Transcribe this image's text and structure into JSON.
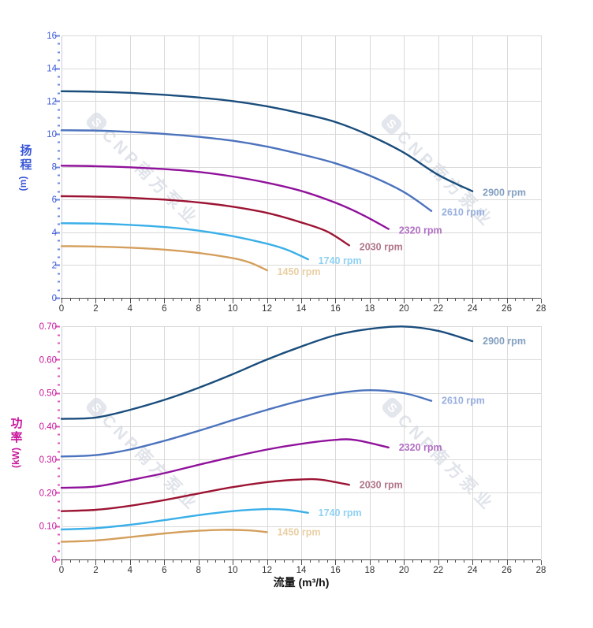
{
  "watermark": {
    "brand": "CNP南方泵业",
    "logo_letter": "S"
  },
  "chart_data": [
    {
      "type": "line",
      "title": "",
      "xlabel": "",
      "ylabel": "扬程",
      "ylabel_unit": "(m)",
      "xlim": [
        0,
        28
      ],
      "ylim": [
        0,
        16
      ],
      "x_tick_step": 2,
      "y_tick_step": 2,
      "x_minor_step": 0.5,
      "y_minor_step": 0.5,
      "grid": true,
      "legend_position": "curve-end-labels",
      "x_tick_labels": [
        "0",
        "2",
        "4",
        "6",
        "8",
        "10",
        "12",
        "14",
        "16",
        "18",
        "20",
        "22",
        "24",
        "26",
        "28"
      ],
      "y_tick_labels": [
        "0",
        "2",
        "4",
        "6",
        "8",
        "10",
        "12",
        "14",
        "16"
      ],
      "axis_label_color": "#3a57d7",
      "tick_color": "#6e86de",
      "x_tick_label_color": "#333333",
      "grid_color": "#d9d9d9",
      "x_axis_color": "#4d4d4d",
      "series": [
        {
          "name": "2900 rpm",
          "color": "#1a4d7c",
          "label_color": "#829fc0",
          "points": [
            [
              0,
              12.6
            ],
            [
              2,
              12.57
            ],
            [
              4,
              12.5
            ],
            [
              6,
              12.38
            ],
            [
              8,
              12.22
            ],
            [
              10,
              12.0
            ],
            [
              12,
              11.68
            ],
            [
              14,
              11.25
            ],
            [
              16,
              10.72
            ],
            [
              18,
              9.9
            ],
            [
              20,
              8.85
            ],
            [
              22,
              7.5
            ],
            [
              24,
              6.5
            ]
          ]
        },
        {
          "name": "2610 rpm",
          "color": "#4c73bd",
          "label_color": "#98afdf",
          "points": [
            [
              0,
              10.22
            ],
            [
              2,
              10.2
            ],
            [
              4,
              10.12
            ],
            [
              6,
              10.0
            ],
            [
              8,
              9.82
            ],
            [
              10,
              9.58
            ],
            [
              12,
              9.22
            ],
            [
              14,
              8.75
            ],
            [
              16,
              8.2
            ],
            [
              18,
              7.45
            ],
            [
              20,
              6.45
            ],
            [
              21.6,
              5.3
            ]
          ]
        },
        {
          "name": "2320 rpm",
          "color": "#90119b",
          "label_color": "#b06fc2",
          "points": [
            [
              0,
              8.06
            ],
            [
              2,
              8.03
            ],
            [
              4,
              7.96
            ],
            [
              6,
              7.85
            ],
            [
              8,
              7.68
            ],
            [
              10,
              7.4
            ],
            [
              12,
              7.02
            ],
            [
              14,
              6.52
            ],
            [
              16,
              5.8
            ],
            [
              17.6,
              5.05
            ],
            [
              19.1,
              4.2
            ]
          ]
        },
        {
          "name": "2030 rpm",
          "color": "#9c1433",
          "label_color": "#b1758a",
          "points": [
            [
              0,
              6.2
            ],
            [
              2,
              6.17
            ],
            [
              4,
              6.1
            ],
            [
              6,
              5.99
            ],
            [
              8,
              5.82
            ],
            [
              10,
              5.56
            ],
            [
              12,
              5.18
            ],
            [
              14,
              4.6
            ],
            [
              15.5,
              4.05
            ],
            [
              16.8,
              3.2
            ]
          ]
        },
        {
          "name": "1740 rpm",
          "color": "#3aafe8",
          "label_color": "#8ed1f2",
          "points": [
            [
              0,
              4.55
            ],
            [
              2,
              4.53
            ],
            [
              4,
              4.45
            ],
            [
              6,
              4.32
            ],
            [
              8,
              4.1
            ],
            [
              10,
              3.76
            ],
            [
              12,
              3.3
            ],
            [
              13.2,
              2.92
            ],
            [
              14.4,
              2.35
            ]
          ]
        },
        {
          "name": "1450 rpm",
          "color": "#d49f5c",
          "label_color": "#e9cfa3",
          "points": [
            [
              0,
              3.15
            ],
            [
              2,
              3.13
            ],
            [
              4,
              3.06
            ],
            [
              6,
              2.94
            ],
            [
              8,
              2.74
            ],
            [
              10,
              2.42
            ],
            [
              11,
              2.15
            ],
            [
              12,
              1.68
            ]
          ]
        }
      ]
    },
    {
      "type": "line",
      "title": "",
      "xlabel": "流量 (m³/h)",
      "ylabel": "功率",
      "ylabel_unit": "(kW)",
      "xlim": [
        0,
        28
      ],
      "ylim": [
        0,
        0.7
      ],
      "x_tick_step": 2,
      "y_tick_step": 0.1,
      "x_minor_step": 0.5,
      "y_minor_step": 0.025,
      "grid": true,
      "legend_position": "curve-end-labels",
      "x_tick_labels": [
        "0",
        "2",
        "4",
        "6",
        "8",
        "10",
        "12",
        "14",
        "16",
        "18",
        "20",
        "22",
        "24",
        "26",
        "28"
      ],
      "y_tick_labels": [
        "0",
        "0.10",
        "0.20",
        "0.30",
        "0.40",
        "0.50",
        "0.60",
        "0.70"
      ],
      "axis_label_color": "#c9159c",
      "tick_color": "#dd55b8",
      "x_tick_label_color": "#333333",
      "grid_color": "#d9d9d9",
      "x_axis_color": "#4d4d4d",
      "series": [
        {
          "name": "2900 rpm",
          "color": "#1a4d7c",
          "label_color": "#829fc0",
          "points": [
            [
              0,
              0.422
            ],
            [
              2,
              0.426
            ],
            [
              4,
              0.449
            ],
            [
              6,
              0.479
            ],
            [
              8,
              0.515
            ],
            [
              10,
              0.556
            ],
            [
              12,
              0.6
            ],
            [
              14,
              0.639
            ],
            [
              16,
              0.673
            ],
            [
              18,
              0.692
            ],
            [
              20,
              0.699
            ],
            [
              22,
              0.686
            ],
            [
              24,
              0.655
            ]
          ]
        },
        {
          "name": "2610 rpm",
          "color": "#4c73bd",
          "label_color": "#98afdf",
          "points": [
            [
              0,
              0.309
            ],
            [
              2,
              0.313
            ],
            [
              4,
              0.33
            ],
            [
              6,
              0.356
            ],
            [
              8,
              0.386
            ],
            [
              10,
              0.418
            ],
            [
              12,
              0.449
            ],
            [
              14,
              0.477
            ],
            [
              16,
              0.498
            ],
            [
              18,
              0.508
            ],
            [
              20,
              0.499
            ],
            [
              21.6,
              0.476
            ]
          ]
        },
        {
          "name": "2320 rpm",
          "color": "#90119b",
          "label_color": "#b06fc2",
          "points": [
            [
              0,
              0.215
            ],
            [
              2,
              0.219
            ],
            [
              4,
              0.238
            ],
            [
              6,
              0.259
            ],
            [
              8,
              0.284
            ],
            [
              10,
              0.308
            ],
            [
              12,
              0.33
            ],
            [
              14,
              0.347
            ],
            [
              16,
              0.359
            ],
            [
              17.2,
              0.358
            ],
            [
              19.1,
              0.336
            ]
          ]
        },
        {
          "name": "2030 rpm",
          "color": "#9c1433",
          "label_color": "#b1758a",
          "points": [
            [
              0,
              0.145
            ],
            [
              2,
              0.149
            ],
            [
              4,
              0.161
            ],
            [
              6,
              0.178
            ],
            [
              8,
              0.198
            ],
            [
              10,
              0.217
            ],
            [
              12,
              0.232
            ],
            [
              14,
              0.24
            ],
            [
              15.2,
              0.239
            ],
            [
              16.8,
              0.224
            ]
          ]
        },
        {
          "name": "1740 rpm",
          "color": "#3aafe8",
          "label_color": "#8ed1f2",
          "points": [
            [
              0,
              0.09
            ],
            [
              2,
              0.094
            ],
            [
              4,
              0.104
            ],
            [
              6,
              0.118
            ],
            [
              8,
              0.133
            ],
            [
              10,
              0.145
            ],
            [
              12,
              0.151
            ],
            [
              13.2,
              0.149
            ],
            [
              14.4,
              0.14
            ]
          ]
        },
        {
          "name": "1450 rpm",
          "color": "#d49f5c",
          "label_color": "#e9cfa3",
          "points": [
            [
              0,
              0.053
            ],
            [
              2,
              0.057
            ],
            [
              4,
              0.067
            ],
            [
              6,
              0.078
            ],
            [
              8,
              0.086
            ],
            [
              9.5,
              0.089
            ],
            [
              11,
              0.087
            ],
            [
              12,
              0.082
            ]
          ]
        }
      ]
    }
  ]
}
